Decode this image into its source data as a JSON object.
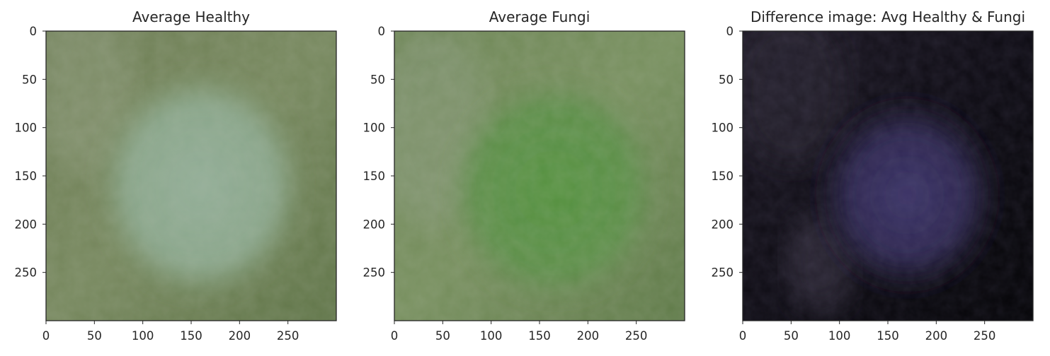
{
  "figure": {
    "panels": [
      {
        "id": "avg-healthy",
        "title": "Average Healthy",
        "kind": "healthy"
      },
      {
        "id": "avg-fungi",
        "title": "Average Fungi",
        "kind": "fungi"
      },
      {
        "id": "difference",
        "title": "Difference image: Avg Healthy & Fungi",
        "kind": "difference"
      }
    ]
  },
  "chart_data": [
    {
      "type": "heatmap",
      "title": "Average Healthy",
      "xticks": [
        0,
        50,
        100,
        150,
        200,
        250
      ],
      "yticks": [
        0,
        50,
        100,
        150,
        200,
        250
      ],
      "xlim": [
        0,
        300
      ],
      "ylim": [
        300,
        0
      ],
      "grid": false
    },
    {
      "type": "heatmap",
      "title": "Average Fungi",
      "xticks": [
        0,
        50,
        100,
        150,
        200,
        250
      ],
      "yticks": [
        0,
        50,
        100,
        150,
        200,
        250
      ],
      "xlim": [
        0,
        300
      ],
      "ylim": [
        300,
        0
      ],
      "grid": false
    },
    {
      "type": "heatmap",
      "title": "Difference image: Avg Healthy & Fungi",
      "xticks": [
        0,
        50,
        100,
        150,
        200,
        250
      ],
      "yticks": [
        0,
        50,
        100,
        150,
        200,
        250
      ],
      "xlim": [
        0,
        300
      ],
      "ylim": [
        300,
        0
      ],
      "grid": false
    }
  ],
  "colors": {
    "healthy_base": "#6f8559",
    "healthy_blob": "#8fa890",
    "fungi_base": "#6a8a55",
    "fungi_blob": "#5a8f45",
    "difference_base": "#0a0810",
    "difference_blob": "#3a3060",
    "axis": "#262626"
  }
}
